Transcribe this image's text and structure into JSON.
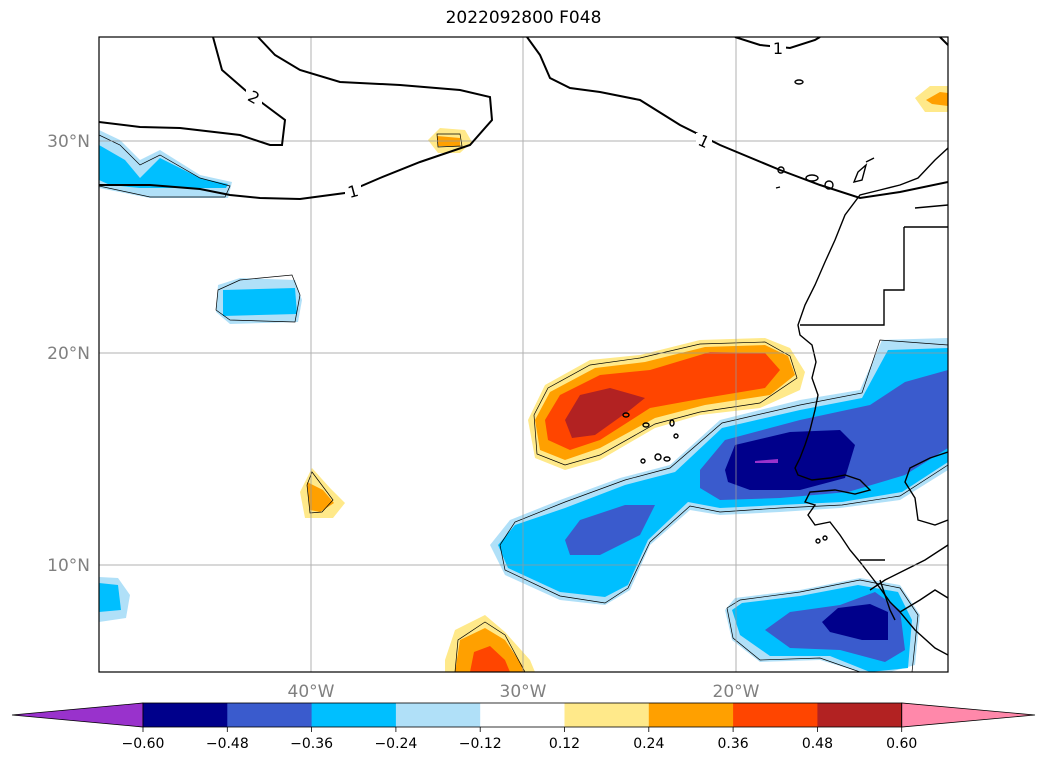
{
  "title": "2022092800 F048",
  "map": {
    "lat_range": [
      5,
      35
    ],
    "lon_range": [
      -50,
      -10
    ],
    "lat_ticks": [
      {
        "value": 30,
        "label": "30°N"
      },
      {
        "value": 20,
        "label": "20°N"
      },
      {
        "value": 10,
        "label": "10°N"
      }
    ],
    "lon_ticks": [
      {
        "value": -40,
        "label": "40°W"
      },
      {
        "value": -30,
        "label": "30°W"
      },
      {
        "value": -20,
        "label": "20°W"
      }
    ],
    "contour_labels": [
      "2",
      "1",
      "1",
      "1"
    ]
  },
  "colorbar": {
    "levels": [
      "−0.60",
      "−0.48",
      "−0.36",
      "−0.24",
      "−0.12",
      "0.12",
      "0.24",
      "0.36",
      "0.48",
      "0.60"
    ],
    "colors": [
      "#9932cc",
      "#00008b",
      "#3a5bcd",
      "#00bfff",
      "#b0e0f8",
      "#ffffff",
      "#ffe98a",
      "#ffa000",
      "#ff4500",
      "#b22222",
      "#ff88aa"
    ]
  }
}
